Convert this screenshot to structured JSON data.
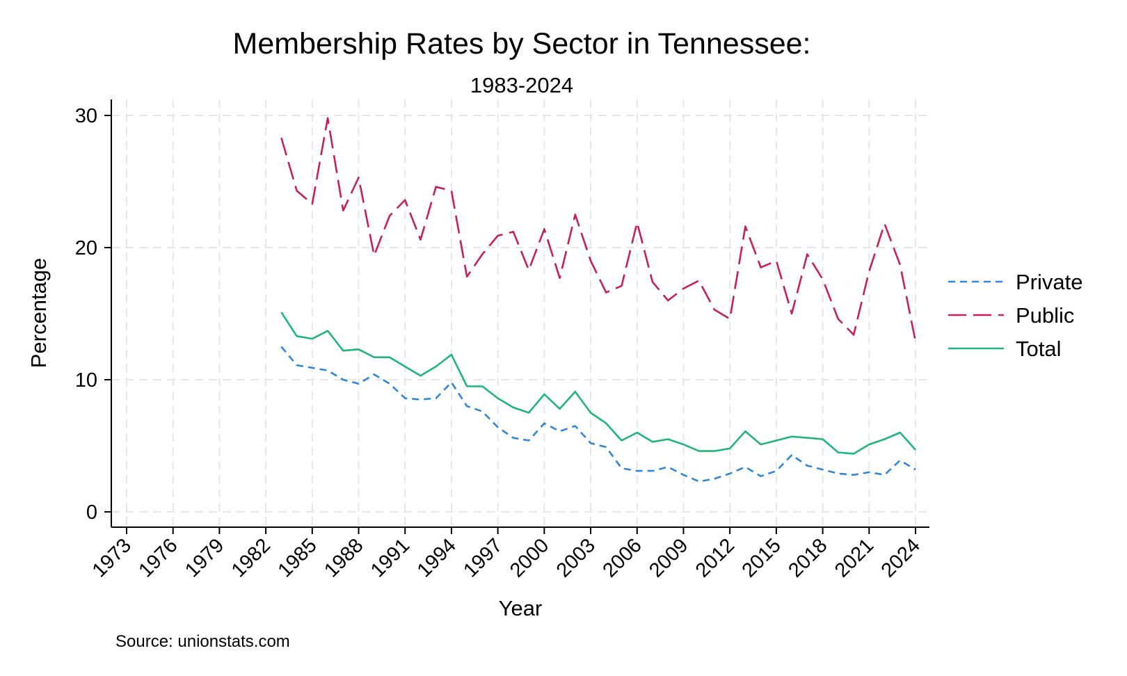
{
  "chart_data": {
    "type": "line",
    "title": "Membership Rates by Sector in Tennessee:",
    "subtitle": "1983-2024",
    "xlabel": "Year",
    "ylabel": "Percentage",
    "note": "Source: unionstats.com",
    "xlim": [
      1973,
      2024
    ],
    "ylim": [
      0,
      30
    ],
    "x_ticks": [
      "1973",
      "1976",
      "1979",
      "1982",
      "1985",
      "1988",
      "1991",
      "1994",
      "1997",
      "2000",
      "2003",
      "2006",
      "2009",
      "2012",
      "2015",
      "2018",
      "2021",
      "2024"
    ],
    "y_ticks": [
      "0",
      "10",
      "20",
      "30"
    ],
    "grid": true,
    "legend_position": "right",
    "x": [
      1983,
      1984,
      1985,
      1986,
      1987,
      1988,
      1989,
      1990,
      1991,
      1992,
      1993,
      1994,
      1995,
      1996,
      1997,
      1998,
      1999,
      2000,
      2001,
      2002,
      2003,
      2004,
      2005,
      2006,
      2007,
      2008,
      2009,
      2010,
      2011,
      2012,
      2013,
      2014,
      2015,
      2016,
      2017,
      2018,
      2019,
      2020,
      2021,
      2022,
      2023,
      2024
    ],
    "series": [
      {
        "name": "Private",
        "color": "#2e86de",
        "dash": "short",
        "values": [
          12.5,
          11.1,
          10.9,
          10.7,
          10.0,
          9.7,
          10.4,
          9.7,
          8.6,
          8.5,
          8.6,
          9.8,
          8.0,
          7.6,
          6.4,
          5.6,
          5.4,
          6.7,
          6.1,
          6.5,
          5.2,
          4.9,
          3.3,
          3.1,
          3.1,
          3.4,
          2.8,
          2.3,
          2.5,
          2.9,
          3.4,
          2.7,
          3.1,
          4.3,
          3.5,
          3.2,
          2.9,
          2.8,
          3.0,
          2.8,
          3.9,
          3.2
        ]
      },
      {
        "name": "Public",
        "color": "#c81e5b",
        "dash": "long",
        "values": [
          28.3,
          24.3,
          23.3,
          29.8,
          22.8,
          25.3,
          19.4,
          22.4,
          23.6,
          20.6,
          24.6,
          24.3,
          17.8,
          19.5,
          20.9,
          21.2,
          18.3,
          21.4,
          17.7,
          22.5,
          19.0,
          16.6,
          17.1,
          21.9,
          17.4,
          16.0,
          16.9,
          17.5,
          15.3,
          14.6,
          21.6,
          18.5,
          19.0,
          15.0,
          19.5,
          17.6,
          14.6,
          13.4,
          18.2,
          21.8,
          18.7,
          12.9
        ]
      },
      {
        "name": "Total",
        "color": "#1fb57a",
        "dash": "solid",
        "values": [
          15.1,
          13.3,
          13.1,
          13.7,
          12.2,
          12.3,
          11.7,
          11.7,
          11.0,
          10.3,
          11.0,
          11.9,
          9.5,
          9.5,
          8.6,
          7.9,
          7.5,
          8.9,
          7.8,
          9.1,
          7.5,
          6.7,
          5.4,
          6.0,
          5.3,
          5.5,
          5.1,
          4.6,
          4.6,
          4.8,
          6.1,
          5.1,
          5.4,
          5.7,
          5.6,
          5.5,
          4.5,
          4.4,
          5.1,
          5.5,
          6.0,
          4.7
        ]
      }
    ]
  }
}
